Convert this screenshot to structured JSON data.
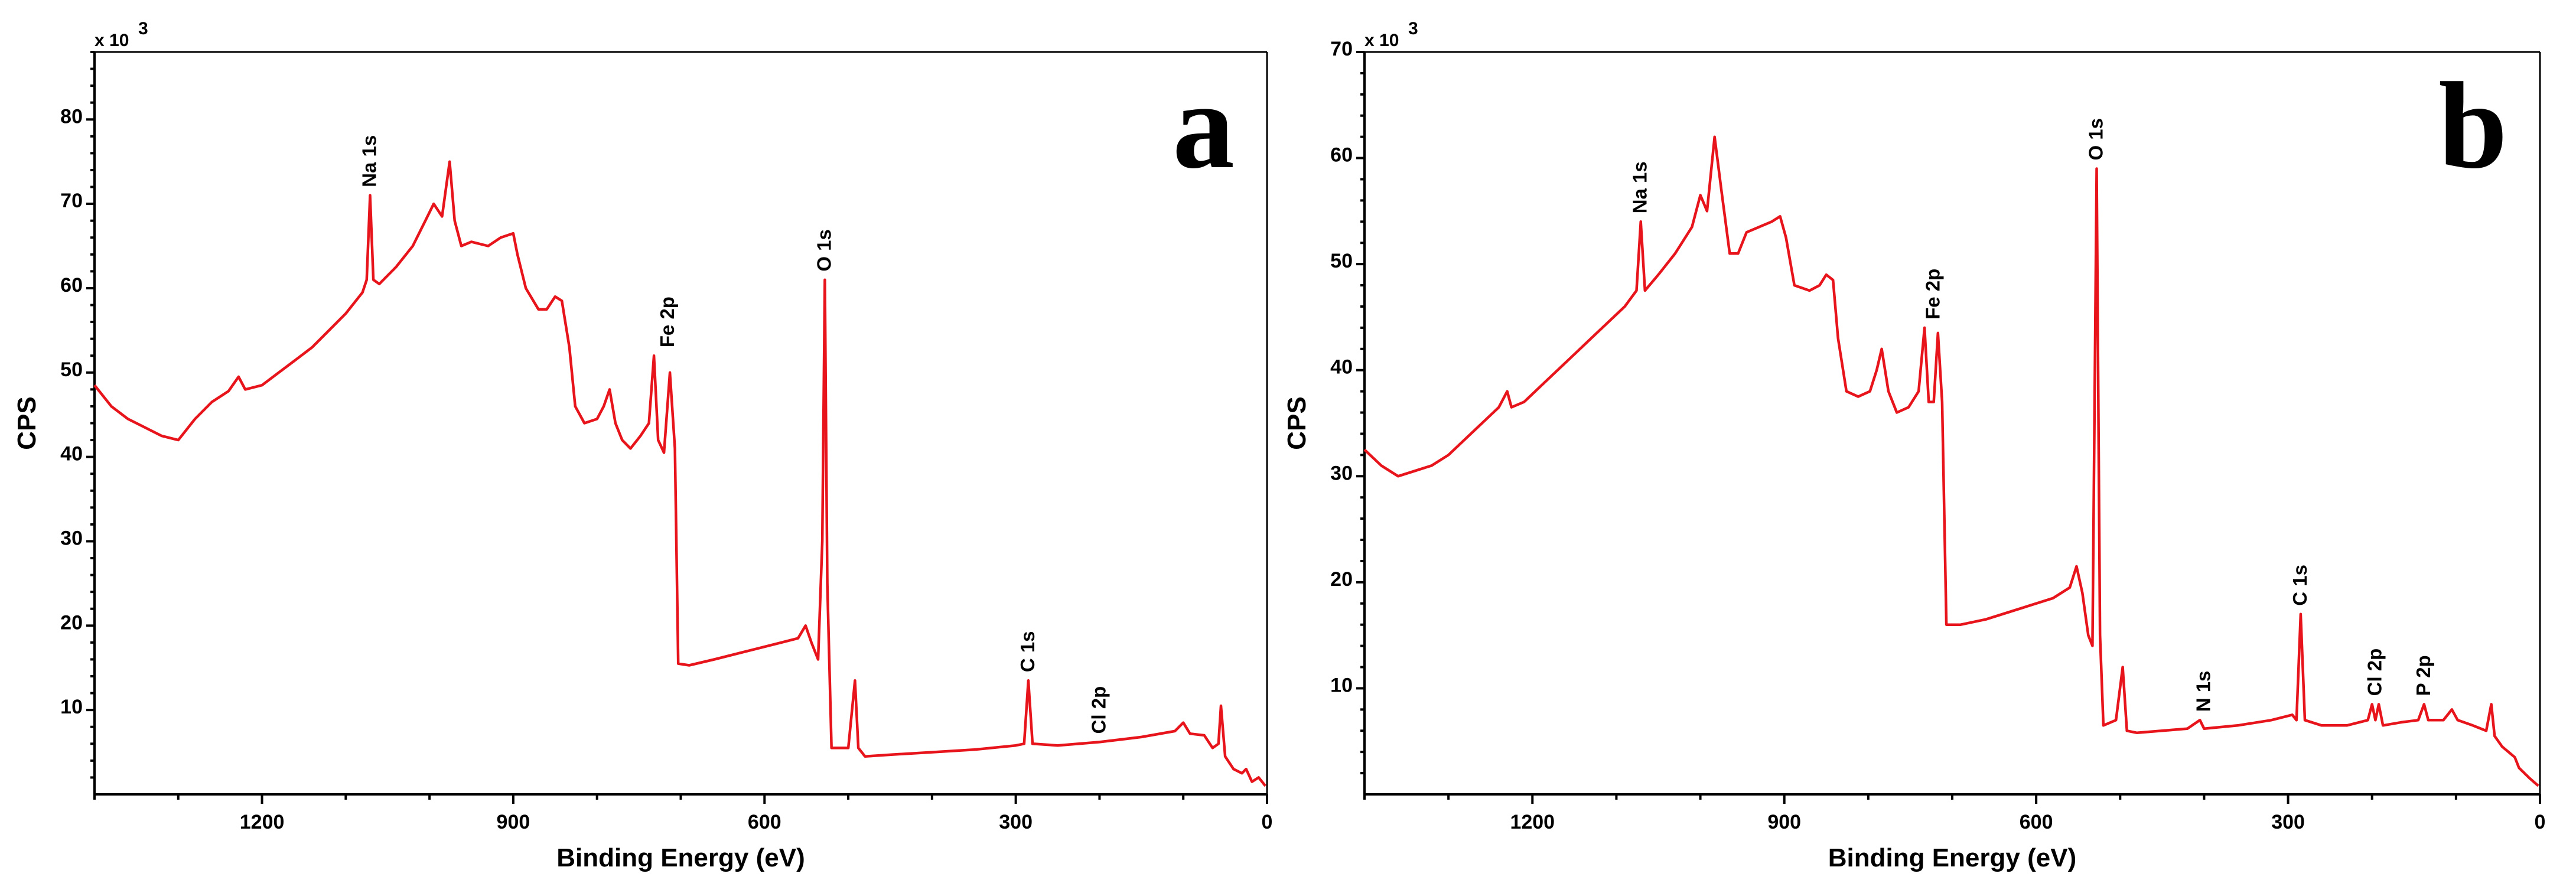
{
  "chart_data": [
    {
      "type": "line",
      "panel_label": "a",
      "xlabel": "Binding Energy (eV)",
      "ylabel": "CPS",
      "y_multiplier_label": "x 10",
      "y_multiplier_exponent": "3",
      "x_reversed": true,
      "xlim": [
        1400,
        0
      ],
      "ylim": [
        0,
        88
      ],
      "x_ticks": [
        1200,
        900,
        600,
        300,
        0
      ],
      "y_ticks": [
        10,
        20,
        30,
        40,
        50,
        60,
        70,
        80
      ],
      "series_color": "#e8141b",
      "points": [
        [
          1400,
          48.5
        ],
        [
          1380,
          46.0
        ],
        [
          1360,
          44.5
        ],
        [
          1340,
          43.5
        ],
        [
          1320,
          42.5
        ],
        [
          1300,
          42.0
        ],
        [
          1280,
          44.5
        ],
        [
          1260,
          46.5
        ],
        [
          1240,
          47.8
        ],
        [
          1228,
          49.5
        ],
        [
          1220,
          48.0
        ],
        [
          1200,
          48.5
        ],
        [
          1180,
          50.0
        ],
        [
          1160,
          51.5
        ],
        [
          1140,
          53.0
        ],
        [
          1120,
          55.0
        ],
        [
          1100,
          57.0
        ],
        [
          1080,
          59.5
        ],
        [
          1075,
          61.0
        ],
        [
          1071,
          71.0
        ],
        [
          1067,
          61.0
        ],
        [
          1060,
          60.5
        ],
        [
          1040,
          62.5
        ],
        [
          1020,
          65.0
        ],
        [
          1005,
          68.0
        ],
        [
          995,
          70.0
        ],
        [
          985,
          68.5
        ],
        [
          976,
          75.0
        ],
        [
          970,
          68.0
        ],
        [
          962,
          65.0
        ],
        [
          950,
          65.5
        ],
        [
          930,
          65.0
        ],
        [
          915,
          66.0
        ],
        [
          900,
          66.5
        ],
        [
          895,
          64.0
        ],
        [
          885,
          60.0
        ],
        [
          870,
          57.5
        ],
        [
          860,
          57.5
        ],
        [
          850,
          59.0
        ],
        [
          842,
          58.5
        ],
        [
          833,
          53.0
        ],
        [
          826,
          46.0
        ],
        [
          815,
          44.0
        ],
        [
          800,
          44.5
        ],
        [
          792,
          46.0
        ],
        [
          785,
          48.0
        ],
        [
          778,
          44.0
        ],
        [
          770,
          42.0
        ],
        [
          760,
          41.0
        ],
        [
          748,
          42.5
        ],
        [
          738,
          44.0
        ],
        [
          732,
          52.0
        ],
        [
          727,
          42.0
        ],
        [
          720,
          40.5
        ],
        [
          713,
          50.0
        ],
        [
          707,
          41.0
        ],
        [
          703,
          15.5
        ],
        [
          690,
          15.3
        ],
        [
          660,
          16.0
        ],
        [
          620,
          17.0
        ],
        [
          580,
          18.0
        ],
        [
          560,
          18.5
        ],
        [
          551,
          20.0
        ],
        [
          544,
          18.0
        ],
        [
          536,
          16.0
        ],
        [
          531,
          30.0
        ],
        [
          528,
          61.0
        ],
        [
          525,
          25.0
        ],
        [
          520,
          5.5
        ],
        [
          500,
          5.5
        ],
        [
          492,
          13.5
        ],
        [
          488,
          5.5
        ],
        [
          480,
          4.5
        ],
        [
          450,
          4.7
        ],
        [
          400,
          5.0
        ],
        [
          350,
          5.3
        ],
        [
          300,
          5.8
        ],
        [
          290,
          6.0
        ],
        [
          285,
          13.5
        ],
        [
          280,
          6.0
        ],
        [
          250,
          5.8
        ],
        [
          200,
          6.2
        ],
        [
          150,
          6.8
        ],
        [
          110,
          7.5
        ],
        [
          100,
          8.5
        ],
        [
          92,
          7.2
        ],
        [
          75,
          7.0
        ],
        [
          65,
          5.5
        ],
        [
          58,
          6.0
        ],
        [
          55,
          10.5
        ],
        [
          50,
          4.5
        ],
        [
          40,
          3.0
        ],
        [
          30,
          2.5
        ],
        [
          25,
          3.0
        ],
        [
          18,
          1.5
        ],
        [
          10,
          2.0
        ],
        [
          2,
          1.0
        ]
      ],
      "annotations": [
        {
          "text": "Na 1s",
          "x": 1071,
          "y": 71.0
        },
        {
          "text": "Fe 2p",
          "x": 715,
          "y": 52.0
        },
        {
          "text": "O 1s",
          "x": 528,
          "y": 61.0
        },
        {
          "text": "C 1s",
          "x": 285,
          "y": 13.5
        },
        {
          "text": "Cl 2p",
          "x": 200,
          "y": 6.2
        }
      ]
    },
    {
      "type": "line",
      "panel_label": "b",
      "xlabel": "Binding Energy (eV)",
      "ylabel": "CPS",
      "y_multiplier_label": "x 10",
      "y_multiplier_exponent": "3",
      "x_reversed": true,
      "xlim": [
        1400,
        0
      ],
      "ylim": [
        0,
        70
      ],
      "x_ticks": [
        1200,
        900,
        600,
        300,
        0
      ],
      "y_ticks": [
        10,
        20,
        30,
        40,
        50,
        60,
        70
      ],
      "series_color": "#e8141b",
      "points": [
        [
          1400,
          32.5
        ],
        [
          1380,
          31.0
        ],
        [
          1360,
          30.0
        ],
        [
          1340,
          30.5
        ],
        [
          1320,
          31.0
        ],
        [
          1300,
          32.0
        ],
        [
          1280,
          33.5
        ],
        [
          1260,
          35.0
        ],
        [
          1240,
          36.5
        ],
        [
          1230,
          38.0
        ],
        [
          1225,
          36.5
        ],
        [
          1210,
          37.0
        ],
        [
          1190,
          38.5
        ],
        [
          1170,
          40.0
        ],
        [
          1150,
          41.5
        ],
        [
          1130,
          43.0
        ],
        [
          1110,
          44.5
        ],
        [
          1090,
          46.0
        ],
        [
          1076,
          47.5
        ],
        [
          1071,
          54.0
        ],
        [
          1066,
          47.5
        ],
        [
          1050,
          49.0
        ],
        [
          1030,
          51.0
        ],
        [
          1010,
          53.5
        ],
        [
          1000,
          56.5
        ],
        [
          992,
          55.0
        ],
        [
          983,
          62.0
        ],
        [
          975,
          57.0
        ],
        [
          965,
          51.0
        ],
        [
          955,
          51.0
        ],
        [
          945,
          53.0
        ],
        [
          930,
          53.5
        ],
        [
          915,
          54.0
        ],
        [
          905,
          54.5
        ],
        [
          898,
          52.5
        ],
        [
          888,
          48.0
        ],
        [
          870,
          47.5
        ],
        [
          858,
          48.0
        ],
        [
          850,
          49.0
        ],
        [
          842,
          48.5
        ],
        [
          836,
          43.0
        ],
        [
          826,
          38.0
        ],
        [
          812,
          37.5
        ],
        [
          798,
          38.0
        ],
        [
          790,
          40.0
        ],
        [
          784,
          42.0
        ],
        [
          776,
          38.0
        ],
        [
          766,
          36.0
        ],
        [
          752,
          36.5
        ],
        [
          740,
          38.0
        ],
        [
          733,
          44.0
        ],
        [
          728,
          37.0
        ],
        [
          722,
          37.0
        ],
        [
          717,
          43.5
        ],
        [
          712,
          37.0
        ],
        [
          707,
          16.0
        ],
        [
          690,
          16.0
        ],
        [
          660,
          16.5
        ],
        [
          620,
          17.5
        ],
        [
          580,
          18.5
        ],
        [
          560,
          19.5
        ],
        [
          552,
          21.5
        ],
        [
          545,
          19.0
        ],
        [
          538,
          15.0
        ],
        [
          533,
          14.0
        ],
        [
          528,
          59.0
        ],
        [
          524,
          15.0
        ],
        [
          520,
          6.5
        ],
        [
          505,
          7.0
        ],
        [
          497,
          12.0
        ],
        [
          492,
          6.0
        ],
        [
          480,
          5.8
        ],
        [
          450,
          6.0
        ],
        [
          420,
          6.2
        ],
        [
          405,
          7.0
        ],
        [
          400,
          6.2
        ],
        [
          360,
          6.5
        ],
        [
          320,
          7.0
        ],
        [
          295,
          7.5
        ],
        [
          290,
          7.0
        ],
        [
          285,
          17.0
        ],
        [
          280,
          7.0
        ],
        [
          260,
          6.5
        ],
        [
          230,
          6.5
        ],
        [
          205,
          7.0
        ],
        [
          200,
          8.5
        ],
        [
          196,
          7.0
        ],
        [
          192,
          8.5
        ],
        [
          187,
          6.5
        ],
        [
          165,
          6.8
        ],
        [
          145,
          7.0
        ],
        [
          138,
          8.5
        ],
        [
          133,
          7.0
        ],
        [
          115,
          7.0
        ],
        [
          105,
          8.0
        ],
        [
          98,
          7.0
        ],
        [
          80,
          6.5
        ],
        [
          64,
          6.0
        ],
        [
          58,
          8.5
        ],
        [
          54,
          5.5
        ],
        [
          45,
          4.5
        ],
        [
          30,
          3.5
        ],
        [
          25,
          2.5
        ],
        [
          12,
          1.5
        ],
        [
          2,
          0.8
        ]
      ],
      "annotations": [
        {
          "text": "Na 1s",
          "x": 1071,
          "y": 54.0
        },
        {
          "text": "Fe 2p",
          "x": 722,
          "y": 44.0
        },
        {
          "text": "O 1s",
          "x": 528,
          "y": 59.0
        },
        {
          "text": "N 1s",
          "x": 400,
          "y": 7.0
        },
        {
          "text": "C 1s",
          "x": 285,
          "y": 17.0
        },
        {
          "text": "Cl 2p",
          "x": 196,
          "y": 8.5
        },
        {
          "text": "P 2p",
          "x": 138,
          "y": 8.5
        }
      ]
    }
  ]
}
